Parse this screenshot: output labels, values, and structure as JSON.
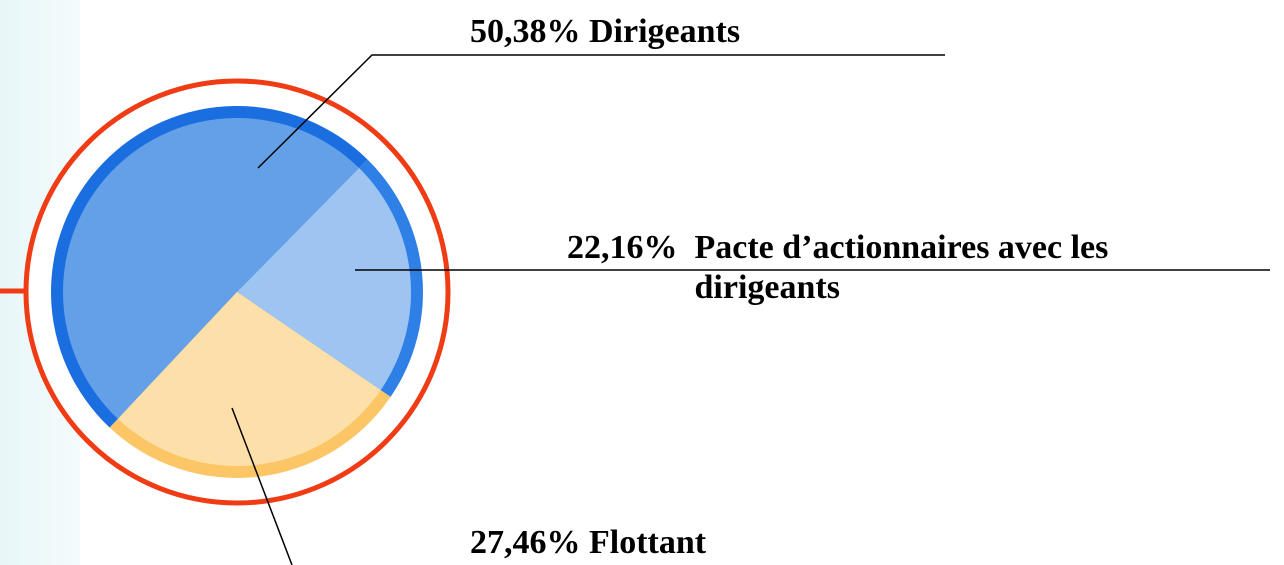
{
  "chart_data": {
    "type": "pie",
    "categories": [
      "Dirigeants",
      "Pacte d’actionnaires avec les dirigeants",
      "Flottant"
    ],
    "values": [
      50.38,
      22.16,
      27.46
    ],
    "value_labels": [
      "50,38%",
      "22,16%",
      "27,46%"
    ],
    "colors": [
      "#64a0e8",
      "#9ec4f1",
      "#fde0a9"
    ]
  }
}
